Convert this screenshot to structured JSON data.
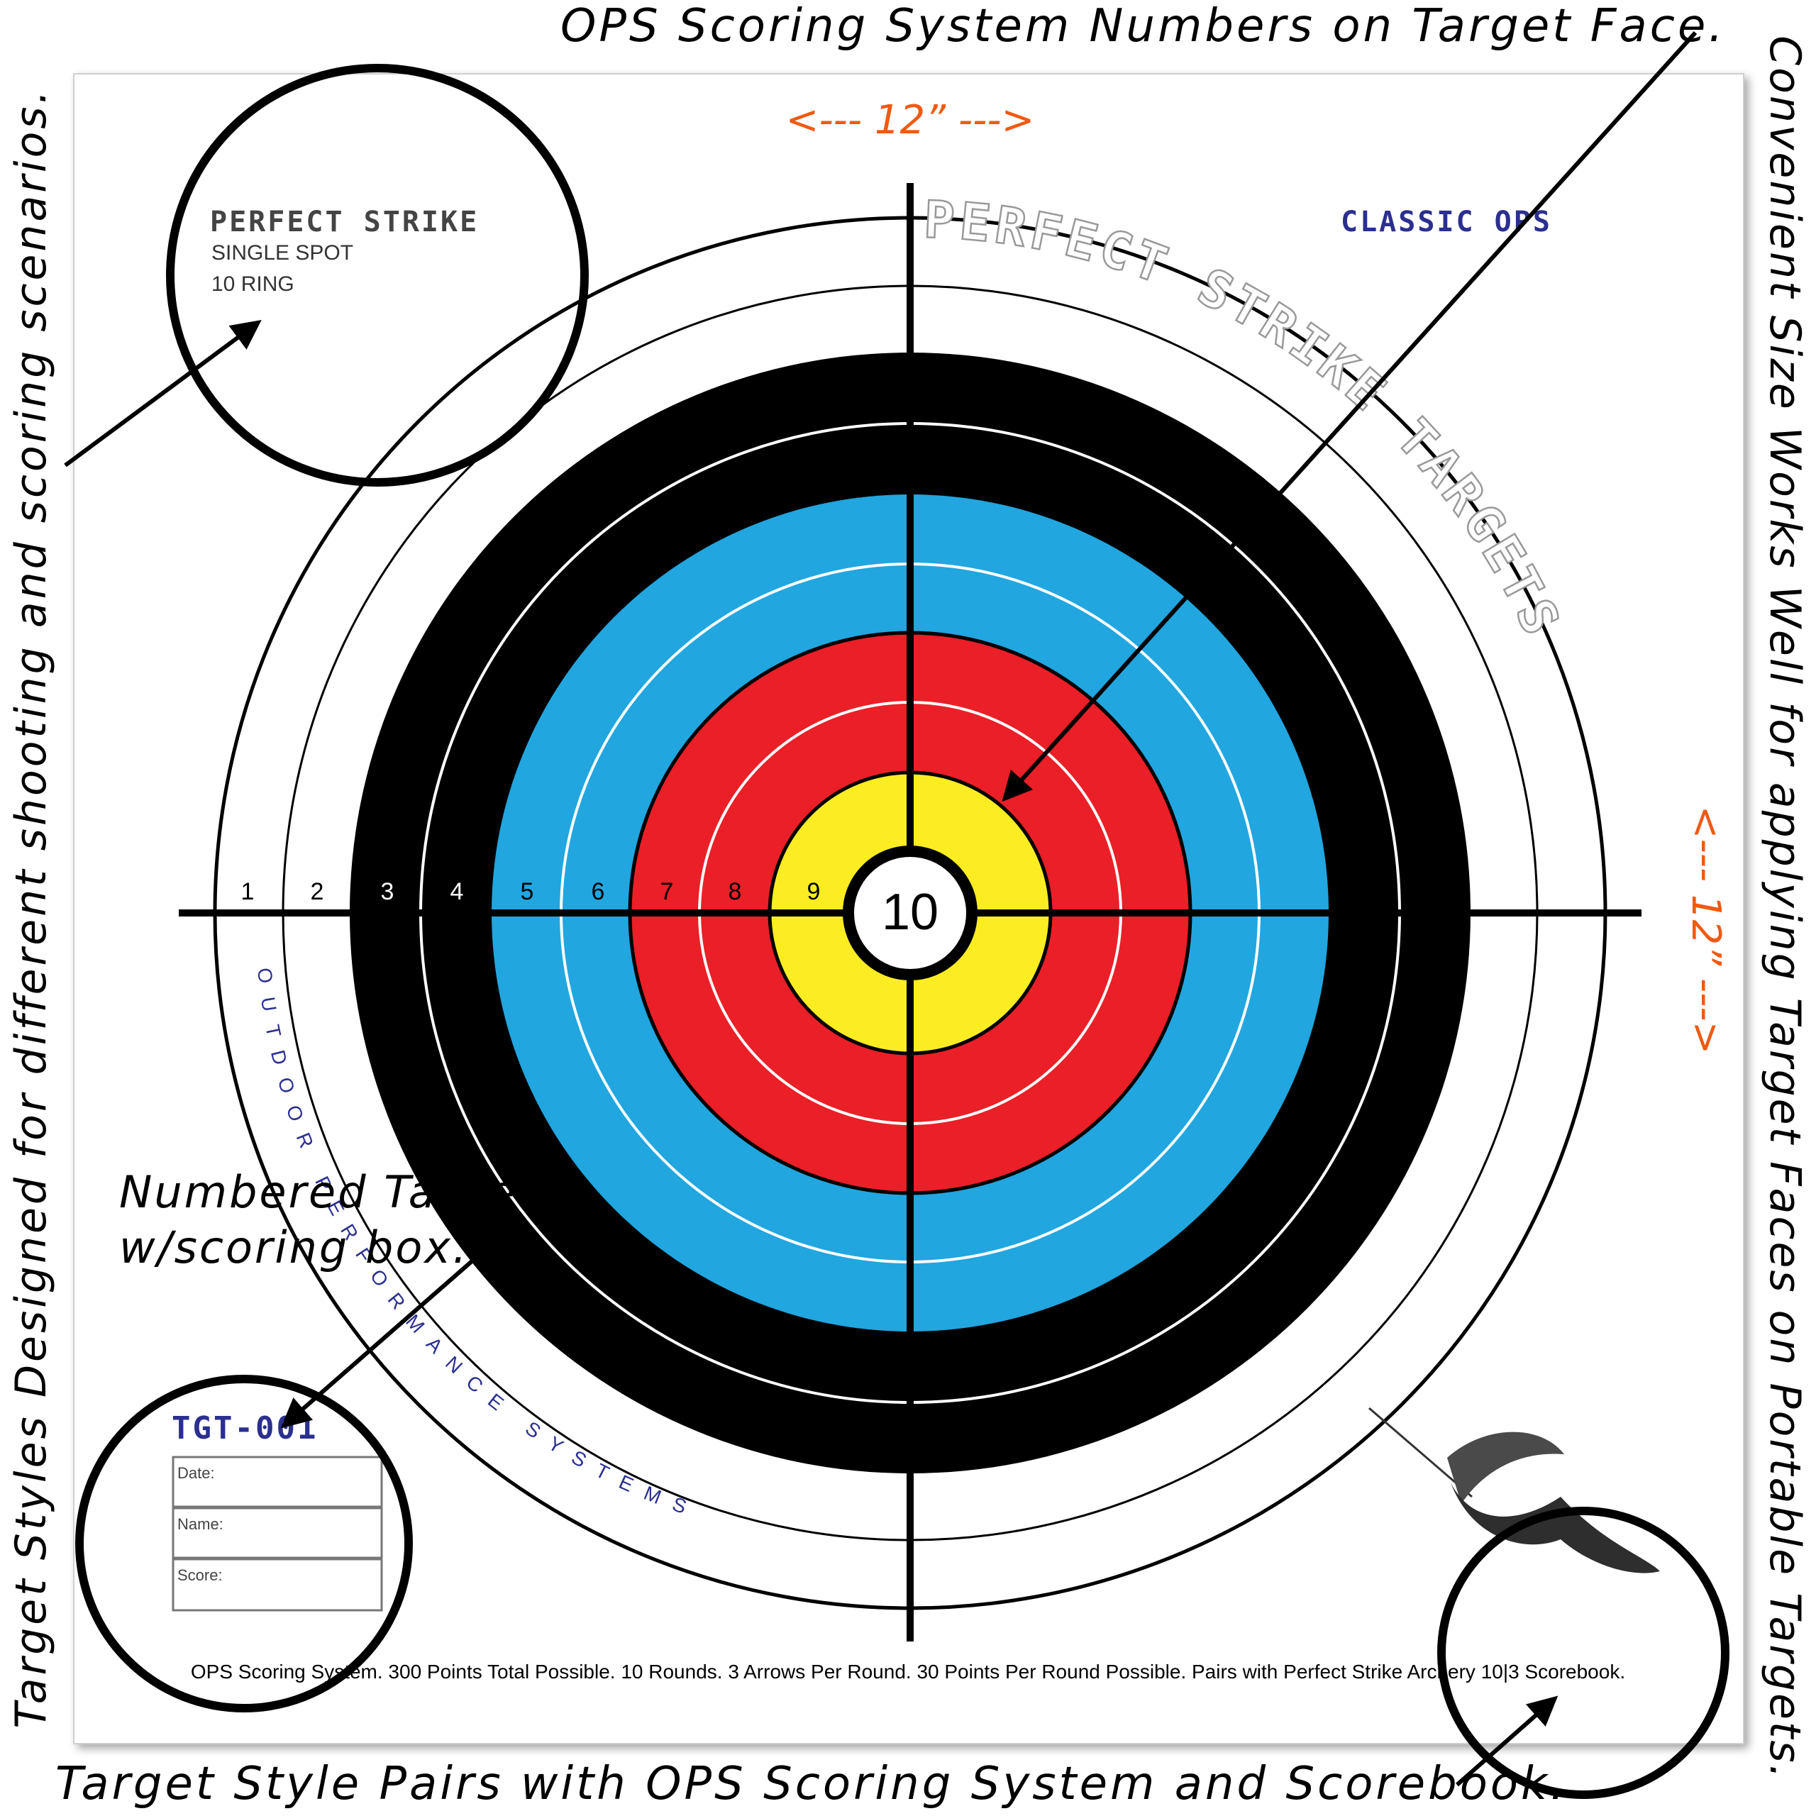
{
  "captions": {
    "top": "OPS Scoring System Numbers on Target Face.",
    "left": "Target Styles Designed for different shooting and scoring scenarios.",
    "right": "Convenient Size Works Well for applying Target Faces on Portable Targets.",
    "bottom": "Target Style Pairs with OPS Scoring System and Scorebook.",
    "numbered_line1": "Numbered Target",
    "numbered_line2": "w/scoring box."
  },
  "dimensions": {
    "width_label": "<--- 12” --->",
    "height_label": "<--- 12” --->"
  },
  "target": {
    "brand": "PERFECT STRIKE",
    "style_line1": "SINGLE SPOT",
    "style_line2": "10 RING",
    "series": "CLASSIC OPS",
    "arc_brand": "PERFECT STRIKE TARGETS",
    "arc_company": "OUTDOOR PERFORMANCE SYSTEMS",
    "center_label": "10",
    "ring_numbers": [
      "1",
      "2",
      "3",
      "4",
      "5",
      "6",
      "7",
      "8",
      "9"
    ],
    "model": "TGT-001",
    "score_box": {
      "date_label": "Date:",
      "name_label": "Name:",
      "score_label": "Score:"
    },
    "footer": "OPS Scoring System. 300 Points Total Possible. 10 Rounds. 3 Arrows Per Round.  30 Points Per Round Possible. Pairs with Perfect Strike Archery 10|3 Scorebook."
  },
  "colors": {
    "black": "#000000",
    "blue": "#21a6df",
    "red": "#ea1f27",
    "yellow": "#fbed22",
    "orange": "#ef5a12",
    "navy": "#2b2f8f",
    "gray": "#999999"
  },
  "icons": {
    "logo": "archery-bow-icon"
  }
}
